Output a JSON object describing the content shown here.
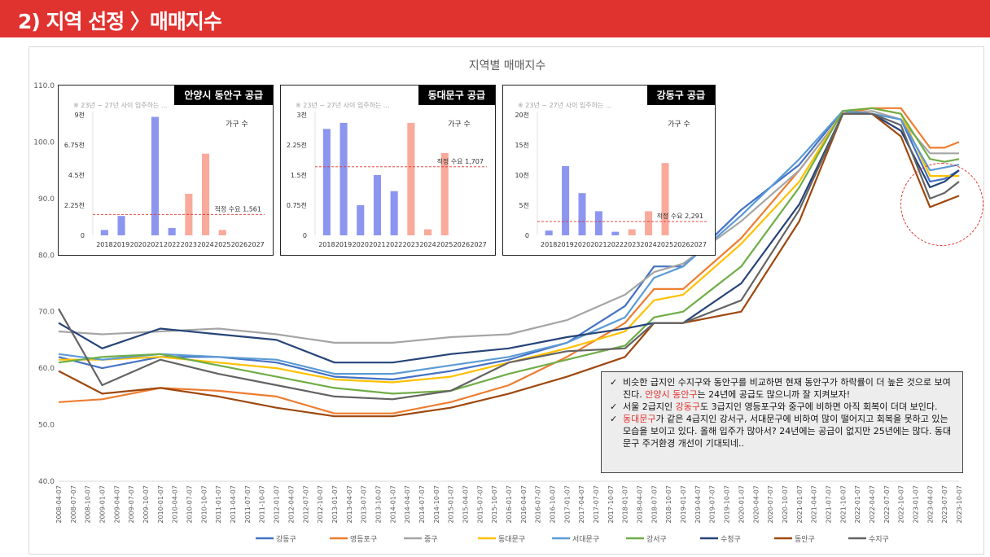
{
  "header": {
    "title": "2) 지역 선정 〉매매지수"
  },
  "comment": {
    "items": [
      {
        "parts": [
          {
            "text": "비슷한 급지인 수지구와 동안구를 비교하면 현재 동안구가 하락률이 더 높은 것으로 보여진다. "
          },
          {
            "text": "안양시 동안구",
            "hl": true
          },
          {
            "text": "는 24년에 공급도 많으니까 잘 지켜보자!"
          }
        ]
      },
      {
        "parts": [
          {
            "text": "서울 2급지인 "
          },
          {
            "text": "강동구",
            "hl": true
          },
          {
            "text": "도 3급지인 영등포구와 중구에 비하면 아직 회복이 더뎌 보인다."
          }
        ]
      },
      {
        "parts": [
          {
            "text": "동대문구",
            "hl": true
          },
          {
            "text": "가 같은 4급지인 강서구, 서대문구에 비하여 많이 떨어지고 회복을 못하고 있는 모습을 보이고 있다. 올해 입주가 많아서? 24년에는 공급이 없지만 25년에는 많다. 동대문구 주거환경 개선이 기대되네.."
          }
        ]
      }
    ]
  },
  "chart_data": [
    {
      "type": "line",
      "title": "지역별 매매지수",
      "ylim": [
        40,
        110
      ],
      "yticks": [
        "40.0",
        "50.0",
        "60.0",
        "70.0",
        "80.0",
        "90.0",
        "100.0",
        "110.0"
      ],
      "grid": false,
      "legend": "bottom",
      "x": [
        "2008-04",
        "2009-01",
        "2010-01",
        "2011-01",
        "2012-01",
        "2013-01",
        "2014-01",
        "2015-01",
        "2016-01",
        "2017-01",
        "2018-01",
        "2018-07",
        "2019-01",
        "2020-01",
        "2021-01",
        "2021-10",
        "2022-04",
        "2022-10",
        "2023-04",
        "2023-07",
        "2023-10"
      ],
      "xticks": [
        "2008-04-07",
        "2008-07-07",
        "2008-10-07",
        "2009-01-07",
        "2009-04-07",
        "2009-07-07",
        "2009-10-07",
        "2010-01-07",
        "2010-04-07",
        "2010-07-07",
        "2010-10-07",
        "2011-01-07",
        "2011-04-07",
        "2011-07-07",
        "2011-10-07",
        "2012-01-07",
        "2012-04-07",
        "2012-07-07",
        "2012-10-07",
        "2013-01-07",
        "2013-04-07",
        "2013-07-07",
        "2013-10-07",
        "2014-01-07",
        "2014-04-07",
        "2014-07-07",
        "2014-10-07",
        "2015-01-07",
        "2015-04-07",
        "2015-07-07",
        "2015-10-07",
        "2016-01-07",
        "2016-04-07",
        "2016-07-07",
        "2016-10-07",
        "2017-01-07",
        "2017-04-07",
        "2017-07-07",
        "2017-10-07",
        "2018-01-07",
        "2018-04-07",
        "2018-07-07",
        "2018-10-07",
        "2019-01-07",
        "2019-04-07",
        "2019-07-07",
        "2019-10-07",
        "2020-01-07",
        "2020-04-07",
        "2020-07-07",
        "2020-10-07",
        "2021-01-07",
        "2021-04-07",
        "2021-07-07",
        "2021-10-07",
        "2022-01-07",
        "2022-04-07",
        "2022-07-07",
        "2022-10-07",
        "2023-01-07",
        "2023-04-07",
        "2023-07-07",
        "2023-10-07"
      ],
      "series": [
        {
          "name": "강동구",
          "color": "#4472c4",
          "values": [
            62,
            60,
            62,
            62,
            61,
            58.5,
            58,
            59.5,
            61.5,
            64.5,
            71,
            78,
            78,
            88,
            96,
            105.5,
            105,
            104,
            93,
            93.5,
            95
          ]
        },
        {
          "name": "영등포구",
          "color": "#ed7d31",
          "values": [
            54,
            54.5,
            56.5,
            56,
            55,
            52,
            52,
            54,
            57,
            62,
            68,
            74,
            74,
            83,
            95,
            105,
            106,
            106,
            99,
            99,
            100
          ]
        },
        {
          "name": "중구",
          "color": "#a5a5a5",
          "values": [
            66.5,
            66,
            66.5,
            67,
            66,
            64.5,
            64.5,
            65.5,
            66,
            68.5,
            73,
            77,
            78.5,
            86,
            95,
            105,
            105.5,
            104,
            98,
            98,
            98
          ]
        },
        {
          "name": "동대문구",
          "color": "#ffc000",
          "values": [
            61.5,
            61.5,
            62,
            61,
            60,
            58,
            57.5,
            58.5,
            61,
            63.5,
            66.5,
            72,
            73,
            82,
            93,
            105.5,
            106,
            105,
            94,
            94,
            94
          ]
        },
        {
          "name": "서대문구",
          "color": "#5b9bd5",
          "values": [
            62.5,
            61.5,
            62.5,
            62,
            61.5,
            59,
            59,
            60.5,
            62,
            64.5,
            69,
            76,
            78,
            87,
            97,
            105.5,
            105,
            104,
            95,
            95.5,
            96
          ]
        },
        {
          "name": "강서구",
          "color": "#70ad47",
          "values": [
            61,
            62,
            62.5,
            60.5,
            58.5,
            56.5,
            55.5,
            56,
            59,
            61.5,
            64,
            69,
            70,
            78,
            92,
            105.5,
            106,
            105,
            97,
            96.5,
            97
          ]
        },
        {
          "name": "수정구",
          "color": "#264478",
          "values": [
            68,
            63.5,
            67,
            66,
            65,
            61,
            61,
            62.5,
            63.5,
            65.5,
            67,
            68,
            68,
            75,
            89,
            105,
            105,
            102,
            92,
            93,
            95
          ]
        },
        {
          "name": "동안구",
          "color": "#9e480e",
          "values": [
            59.5,
            55.5,
            56.5,
            55,
            53,
            51.5,
            51.5,
            53,
            55.5,
            58.5,
            62,
            68,
            68,
            70,
            86,
            105,
            105,
            101,
            88.5,
            89.5,
            90.5
          ]
        },
        {
          "name": "수지구",
          "color": "#636363",
          "values": [
            70.5,
            57,
            61.5,
            59,
            57,
            55,
            54.5,
            56,
            61,
            63,
            63.5,
            68,
            68,
            72,
            88,
            105,
            105,
            103,
            90,
            91,
            93
          ]
        }
      ]
    },
    {
      "type": "bar",
      "title": "안양시 동안구 공급",
      "note": "※ 23년 ~ 27년 사이 입주하는 ...",
      "legend_label": "가구 수",
      "categories": [
        "2018",
        "2019",
        "2020",
        "2021",
        "2022",
        "2023",
        "2024",
        "2025",
        "2026",
        "2027"
      ],
      "values": [
        0.4,
        1.45,
        0,
        8.85,
        0.55,
        3.1,
        6.1,
        0.4,
        0,
        0
      ],
      "ylim": [
        0,
        9
      ],
      "yticks": [
        "0",
        "2.25천",
        "4.5천",
        "6.75천",
        "9천"
      ],
      "ref_line": {
        "value": 1.561,
        "label": "적정 수요 1,561"
      }
    },
    {
      "type": "bar",
      "title": "동대문구 공급",
      "note": "※ 23년 ~ 27년 사이 입주하는 ...",
      "legend_label": "가구 수",
      "categories": [
        "2018",
        "2019",
        "2020",
        "2021",
        "2022",
        "2023",
        "2024",
        "2025",
        "2026",
        "2027"
      ],
      "values": [
        2.65,
        2.8,
        0.75,
        1.5,
        1.1,
        2.8,
        0.15,
        2.05,
        0,
        0
      ],
      "ylim": [
        0,
        3
      ],
      "yticks": [
        "0",
        "0.75천",
        "1.5천",
        "2.25천",
        "3천"
      ],
      "ref_line": {
        "value": 1.707,
        "label": "적정 수요 1,707"
      }
    },
    {
      "type": "bar",
      "title": "강동구 공급",
      "note": "※ 23년 ~ 27년 사이 입주하는 ...",
      "legend_label": "가구 수",
      "categories": [
        "2018",
        "2019",
        "2020",
        "2021",
        "2022",
        "2023",
        "2024",
        "2025",
        "2026",
        "2027"
      ],
      "values": [
        0.8,
        11.5,
        7.0,
        4.0,
        0.6,
        1.0,
        4.0,
        12.0,
        0,
        0
      ],
      "ylim": [
        0,
        20
      ],
      "yticks": [
        "0",
        "5천",
        "10천",
        "15천",
        "20천"
      ],
      "ref_line": {
        "value": 2.291,
        "label": "적정 수요 2,291"
      }
    }
  ],
  "colors": {
    "bar_past": "#8c96f0",
    "bar_future": "#f9aa9a",
    "ref_line": "#e0322f",
    "accent": "#e0322f"
  }
}
